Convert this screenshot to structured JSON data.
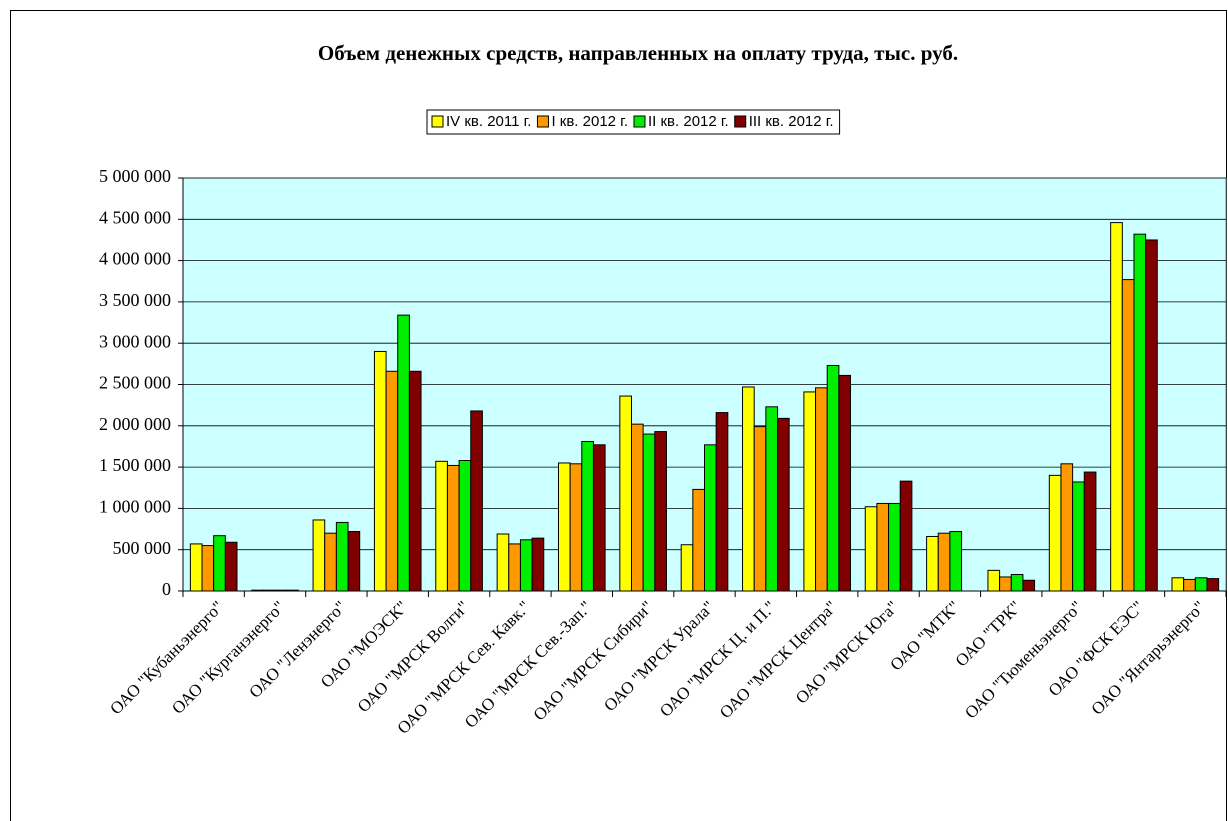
{
  "chart_data": {
    "type": "bar",
    "title": "Объем денежных средств, направленных на оплату труда, тыс. руб.",
    "categories": [
      "ОАО \"Кубаньэнерго\"",
      "ОАО \"Курганэнерго\"",
      "ОАО \"Ленэнерго\"",
      "ОАО \"МОЭСК\"",
      "ОАО \"МРСК Волги\"",
      "ОАО \"МРСК Сев. Кавк.\"",
      "ОАО \"МРСК Сев.-Зап.\"",
      "ОАО \"МРСК Сибири\"",
      "ОАО \"МРСК Урала\"",
      "ОАО \"МРСК Ц. и П.\"",
      "ОАО \"МРСК Центра\"",
      "ОАО \"МРСК Юга\"",
      "ОАО \"МТК\"",
      "ОАО \"ТРК\"",
      "ОАО \"Тюменьэнерго\"",
      "ОАО \"ФСК ЕЭС\"",
      "ОАО \"Янтарьэнерго\""
    ],
    "series": [
      {
        "name": "IV кв. 2011 г.",
        "color": "#ffff00",
        "values": [
          570000,
          10000,
          860000,
          2900000,
          1570000,
          690000,
          1550000,
          2360000,
          560000,
          2470000,
          2410000,
          1020000,
          660000,
          250000,
          1400000,
          4460000,
          160000
        ]
      },
      {
        "name": "I кв. 2012 г.",
        "color": "#ff9900",
        "values": [
          550000,
          10000,
          700000,
          2660000,
          1520000,
          570000,
          1540000,
          2020000,
          1230000,
          1990000,
          2460000,
          1060000,
          700000,
          170000,
          1540000,
          3770000,
          140000
        ]
      },
      {
        "name": "II кв. 2012 г.",
        "color": "#00ee00",
        "values": [
          670000,
          10000,
          830000,
          3340000,
          1580000,
          620000,
          1810000,
          1900000,
          1770000,
          2230000,
          2730000,
          1060000,
          720000,
          200000,
          1320000,
          4320000,
          160000
        ]
      },
      {
        "name": "III кв. 2012 г.",
        "color": "#800000",
        "values": [
          590000,
          10000,
          720000,
          2660000,
          2180000,
          640000,
          1770000,
          1930000,
          2160000,
          2090000,
          2610000,
          1330000,
          null,
          130000,
          1440000,
          4250000,
          150000
        ]
      }
    ],
    "ylim": [
      0,
      5000000
    ],
    "yticks": [
      0,
      {
        "value": 500000,
        "label": "500 000"
      },
      {
        "value": 1000000,
        "label": "1 000 000"
      },
      {
        "value": 1500000,
        "label": "1 500 000"
      },
      {
        "value": 2000000,
        "label": "2 000 000"
      },
      {
        "value": 2500000,
        "label": "2 500 000"
      },
      {
        "value": 3000000,
        "label": "3 000 000"
      },
      {
        "value": 3500000,
        "label": "3 500 000"
      },
      {
        "value": 4000000,
        "label": "4 000 000"
      },
      {
        "value": 4500000,
        "label": "4 500 000"
      },
      {
        "value": 5000000,
        "label": "5 000 000"
      }
    ],
    "grid": true,
    "plot_background": "#ccffff",
    "legend": "top"
  }
}
